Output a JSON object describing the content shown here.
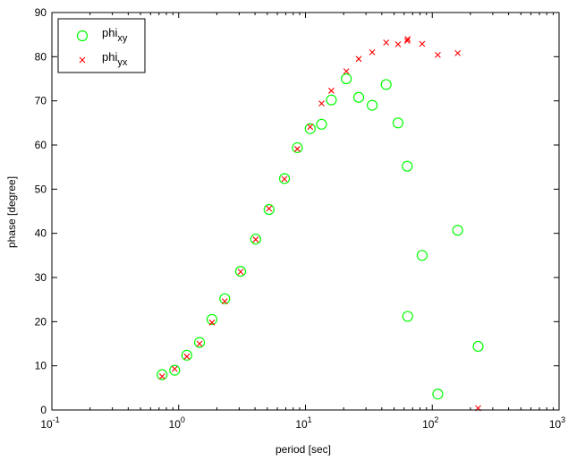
{
  "chart_data": {
    "type": "scatter",
    "xlabel": "period [sec]",
    "ylabel": "phase [degree]",
    "xscale": "log",
    "xlim": [
      0.1,
      1000
    ],
    "ylim": [
      0,
      90
    ],
    "x_ticks": [
      0.1,
      1,
      10,
      100,
      1000
    ],
    "x_tick_labels": [
      {
        "base": "10",
        "exp": "-1"
      },
      {
        "base": "10",
        "exp": "0"
      },
      {
        "base": "10",
        "exp": "1"
      },
      {
        "base": "10",
        "exp": "2"
      },
      {
        "base": "10",
        "exp": "3"
      }
    ],
    "y_ticks": [
      "0",
      "10",
      "20",
      "30",
      "40",
      "50",
      "60",
      "70",
      "80",
      "90"
    ],
    "grid": false,
    "legend_position": "top-left",
    "series": [
      {
        "name": "phi",
        "name_sub": "xy",
        "marker": "circle",
        "color": "#00ff00",
        "points": [
          [
            0.74,
            8.0
          ],
          [
            0.93,
            9.0
          ],
          [
            1.16,
            12.4
          ],
          [
            1.46,
            15.3
          ],
          [
            1.83,
            20.5
          ],
          [
            2.31,
            25.2
          ],
          [
            3.08,
            31.4
          ],
          [
            4.05,
            38.7
          ],
          [
            5.16,
            45.4
          ],
          [
            6.83,
            52.4
          ],
          [
            8.63,
            59.4
          ],
          [
            10.9,
            63.7
          ],
          [
            13.4,
            64.7
          ],
          [
            16.0,
            70.2
          ],
          [
            21.0,
            75.0
          ],
          [
            26.3,
            70.8
          ],
          [
            33.6,
            69.0
          ],
          [
            43.3,
            73.7
          ],
          [
            53.7,
            65.0
          ],
          [
            63.5,
            55.2
          ],
          [
            64.0,
            21.2
          ],
          [
            83.2,
            35.0
          ],
          [
            110.6,
            3.6
          ],
          [
            158.8,
            40.7
          ],
          [
            230.0,
            14.4
          ]
        ]
      },
      {
        "name": "phi",
        "name_sub": "yx",
        "marker": "x",
        "color": "#ff0000",
        "points": [
          [
            0.74,
            7.6
          ],
          [
            0.93,
            9.3
          ],
          [
            1.16,
            12.1
          ],
          [
            1.46,
            15.0
          ],
          [
            1.83,
            19.8
          ],
          [
            2.31,
            24.6
          ],
          [
            3.08,
            31.3
          ],
          [
            4.05,
            38.6
          ],
          [
            5.16,
            45.6
          ],
          [
            6.83,
            52.3
          ],
          [
            8.63,
            59.1
          ],
          [
            10.9,
            64.1
          ],
          [
            13.4,
            69.4
          ],
          [
            16.0,
            72.3
          ],
          [
            21.0,
            76.7
          ],
          [
            26.3,
            79.5
          ],
          [
            33.6,
            81.0
          ],
          [
            43.3,
            83.2
          ],
          [
            53.7,
            82.8
          ],
          [
            63.5,
            83.6
          ],
          [
            64.0,
            84.0
          ],
          [
            83.2,
            82.9
          ],
          [
            110.6,
            80.4
          ],
          [
            158.8,
            80.8
          ],
          [
            230.0,
            0.4
          ]
        ]
      }
    ]
  }
}
